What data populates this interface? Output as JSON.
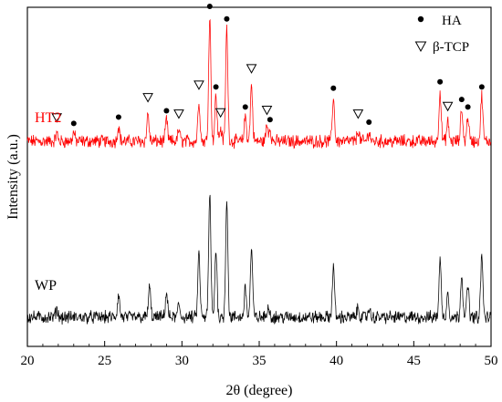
{
  "chart_data": {
    "type": "line",
    "xlabel": "2θ (degree)",
    "ylabel": "Intensity (a.u.)",
    "xlim": [
      20,
      50
    ],
    "xticks": [
      20,
      25,
      30,
      35,
      40,
      45,
      50
    ],
    "y_ticks_shown": false,
    "grid": false,
    "legend_position": "top-right",
    "legend": [
      {
        "marker": "filled-circle",
        "label": "HA"
      },
      {
        "marker": "open-triangle-down",
        "label": "β-TCP"
      }
    ],
    "series": [
      {
        "name": "HT2",
        "color": "#ff0000",
        "peaks": [
          {
            "x": 21.9,
            "h": 0.06
          },
          {
            "x": 23.0,
            "h": 0.07
          },
          {
            "x": 25.9,
            "h": 0.12
          },
          {
            "x": 27.8,
            "h": 0.22
          },
          {
            "x": 29.0,
            "h": 0.17
          },
          {
            "x": 29.8,
            "h": 0.09
          },
          {
            "x": 31.1,
            "h": 0.32
          },
          {
            "x": 31.8,
            "h": 1.0
          },
          {
            "x": 32.2,
            "h": 0.36
          },
          {
            "x": 32.5,
            "h": 0.1
          },
          {
            "x": 32.9,
            "h": 0.9
          },
          {
            "x": 34.1,
            "h": 0.2
          },
          {
            "x": 34.5,
            "h": 0.45
          },
          {
            "x": 35.5,
            "h": 0.12
          },
          {
            "x": 35.7,
            "h": 0.1
          },
          {
            "x": 39.8,
            "h": 0.35
          },
          {
            "x": 41.4,
            "h": 0.09
          },
          {
            "x": 42.1,
            "h": 0.08
          },
          {
            "x": 46.7,
            "h": 0.4
          },
          {
            "x": 47.2,
            "h": 0.15
          },
          {
            "x": 48.1,
            "h": 0.26
          },
          {
            "x": 48.5,
            "h": 0.2
          },
          {
            "x": 49.4,
            "h": 0.36
          }
        ]
      },
      {
        "name": "WP",
        "color": "#000000",
        "peaks": [
          {
            "x": 21.9,
            "h": 0.07
          },
          {
            "x": 25.9,
            "h": 0.18
          },
          {
            "x": 27.9,
            "h": 0.25
          },
          {
            "x": 29.0,
            "h": 0.2
          },
          {
            "x": 29.8,
            "h": 0.1
          },
          {
            "x": 31.1,
            "h": 0.52
          },
          {
            "x": 31.8,
            "h": 1.0
          },
          {
            "x": 32.2,
            "h": 0.55
          },
          {
            "x": 32.9,
            "h": 0.97
          },
          {
            "x": 34.1,
            "h": 0.24
          },
          {
            "x": 34.5,
            "h": 0.56
          },
          {
            "x": 35.6,
            "h": 0.1
          },
          {
            "x": 39.8,
            "h": 0.42
          },
          {
            "x": 41.4,
            "h": 0.08
          },
          {
            "x": 42.1,
            "h": 0.07
          },
          {
            "x": 46.7,
            "h": 0.47
          },
          {
            "x": 47.2,
            "h": 0.2
          },
          {
            "x": 48.1,
            "h": 0.36
          },
          {
            "x": 48.5,
            "h": 0.26
          },
          {
            "x": 49.4,
            "h": 0.5
          }
        ]
      }
    ],
    "annotations": {
      "HA": [
        23.0,
        25.9,
        29.0,
        31.8,
        32.2,
        32.9,
        34.1,
        35.7,
        39.8,
        42.1,
        46.7,
        48.1,
        48.5,
        49.4
      ],
      "β-TCP": [
        21.9,
        27.8,
        29.8,
        31.1,
        32.5,
        34.5,
        35.5,
        41.4,
        47.2
      ]
    }
  }
}
